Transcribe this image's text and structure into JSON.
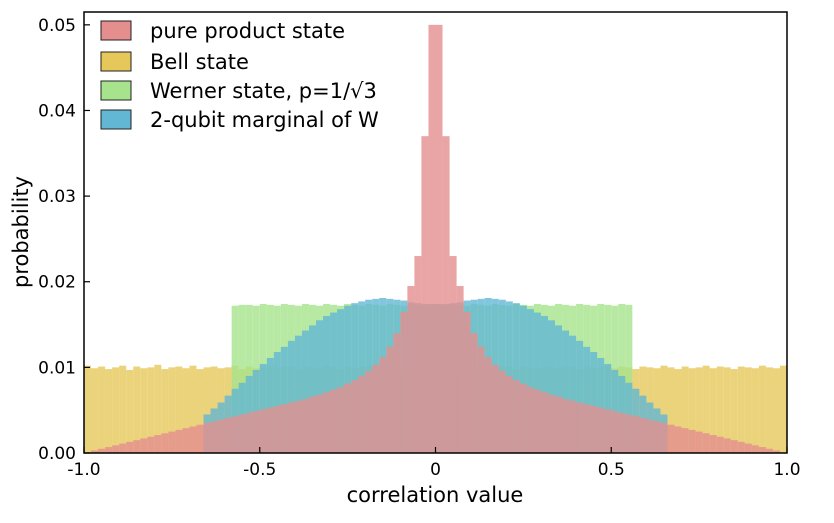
{
  "chart_data": {
    "type": "bar",
    "title": "",
    "xlabel": "correlation value",
    "ylabel": "probability",
    "xlim": [
      -1.0,
      1.0
    ],
    "ylim": [
      0.0,
      0.0515
    ],
    "x_ticks": [
      {
        "value": -1.0,
        "label": "-1.0"
      },
      {
        "value": -0.5,
        "label": "-0.5"
      },
      {
        "value": 0.0,
        "label": "0"
      },
      {
        "value": 0.5,
        "label": "0.5"
      },
      {
        "value": 1.0,
        "label": "1.0"
      }
    ],
    "y_ticks": [
      {
        "value": 0.0,
        "label": "0.00"
      },
      {
        "value": 0.01,
        "label": "0.01"
      },
      {
        "value": 0.02,
        "label": "0.02"
      },
      {
        "value": 0.03,
        "label": "0.03"
      },
      {
        "value": 0.04,
        "label": "0.04"
      },
      {
        "value": 0.05,
        "label": "0.05"
      }
    ],
    "bins": 100,
    "legend_position": "top-left",
    "series": [
      {
        "name": "Bell state",
        "color": "#e6c85a",
        "opacity": 0.8,
        "values": [
          0.0102,
          0.0099,
          0.0101,
          0.0098,
          0.01,
          0.0102,
          0.0097,
          0.0101,
          0.0099,
          0.01,
          0.0103,
          0.0098,
          0.01,
          0.0101,
          0.0099,
          0.0102,
          0.0098,
          0.01,
          0.0101,
          0.0099,
          0.01,
          0.0102,
          0.0098,
          0.0101,
          0.0099,
          0.01,
          0.0102,
          0.0099,
          0.0101,
          0.01,
          0.0098,
          0.0101,
          0.01,
          0.0099,
          0.0102,
          0.01,
          0.0098,
          0.0101,
          0.0099,
          0.01,
          0.0102,
          0.0099,
          0.0101,
          0.01,
          0.0098,
          0.01,
          0.0101,
          0.0099,
          0.0102,
          0.01,
          0.0099,
          0.0101,
          0.01,
          0.0098,
          0.0102,
          0.0099,
          0.0101,
          0.01,
          0.0099,
          0.0101,
          0.01,
          0.0098,
          0.0102,
          0.01,
          0.0099,
          0.0101,
          0.01,
          0.0099,
          0.0102,
          0.01,
          0.0098,
          0.0101,
          0.0099,
          0.01,
          0.0102,
          0.0099,
          0.0101,
          0.01,
          0.0098,
          0.0101,
          0.01,
          0.0099,
          0.0102,
          0.01,
          0.0098,
          0.0101,
          0.0099,
          0.01,
          0.0102,
          0.0099,
          0.0101,
          0.01,
          0.0098,
          0.0101,
          0.01,
          0.0099,
          0.0102,
          0.01,
          0.0099,
          0.0102
        ]
      },
      {
        "name": "Werner state, p=1/√3",
        "color": "#a6e38c",
        "opacity": 0.8,
        "values": [
          0,
          0,
          0,
          0,
          0,
          0,
          0,
          0,
          0,
          0,
          0,
          0,
          0,
          0,
          0,
          0,
          0,
          0,
          0,
          0,
          0,
          0.0172,
          0.0173,
          0.0173,
          0.0172,
          0.0174,
          0.0173,
          0.0172,
          0.0174,
          0.0173,
          0.0172,
          0.0174,
          0.0173,
          0.0172,
          0.0174,
          0.0173,
          0.0172,
          0.0174,
          0.0173,
          0.0172,
          0.0174,
          0.0173,
          0.0172,
          0.0174,
          0.0173,
          0.0172,
          0.0174,
          0.0173,
          0.0172,
          0.0174,
          0.0173,
          0.0172,
          0.0174,
          0.0173,
          0.0172,
          0.0174,
          0.0173,
          0.0172,
          0.0174,
          0.0173,
          0.0172,
          0.0174,
          0.0173,
          0.0172,
          0.0174,
          0.0173,
          0.0172,
          0.0174,
          0.0173,
          0.0172,
          0.0174,
          0.0173,
          0.0172,
          0.0174,
          0.0173,
          0.0172,
          0.0174,
          0.0173,
          0,
          0,
          0,
          0,
          0,
          0,
          0,
          0,
          0,
          0,
          0,
          0,
          0,
          0,
          0,
          0,
          0,
          0,
          0,
          0,
          0,
          0
        ]
      },
      {
        "name": "2-qubit marginal of W",
        "color": "#62b8d4",
        "opacity": 0.8,
        "values": [
          0,
          0,
          0,
          0,
          0,
          0,
          0,
          0,
          0,
          0,
          0,
          0,
          0,
          0,
          0,
          0,
          0,
          0.0045,
          0.0052,
          0.0059,
          0.0067,
          0.0075,
          0.0082,
          0.009,
          0.0097,
          0.0104,
          0.0111,
          0.0118,
          0.0124,
          0.0131,
          0.0137,
          0.0143,
          0.0149,
          0.0155,
          0.016,
          0.0164,
          0.0168,
          0.0172,
          0.0175,
          0.0177,
          0.0179,
          0.018,
          0.0181,
          0.018,
          0.0179,
          0.0178,
          0.0176,
          0.0175,
          0.0174,
          0.0174,
          0.0174,
          0.0174,
          0.0175,
          0.0176,
          0.0178,
          0.0179,
          0.018,
          0.0181,
          0.018,
          0.0179,
          0.0177,
          0.0175,
          0.0172,
          0.0168,
          0.0164,
          0.016,
          0.0155,
          0.0149,
          0.0143,
          0.0137,
          0.0131,
          0.0124,
          0.0118,
          0.0111,
          0.0104,
          0.0097,
          0.009,
          0.0082,
          0.0075,
          0.0067,
          0.0059,
          0.0052,
          0.0045,
          0,
          0,
          0,
          0,
          0,
          0,
          0,
          0,
          0,
          0,
          0,
          0,
          0,
          0,
          0,
          0,
          0
        ]
      },
      {
        "name": "pure product state",
        "color": "#e48e8e",
        "opacity": 0.8,
        "values": [
          5e-05,
          0.0003,
          0.0005,
          0.0007,
          0.0009,
          0.0011,
          0.0013,
          0.0015,
          0.0017,
          0.0019,
          0.0021,
          0.0023,
          0.0025,
          0.0027,
          0.0029,
          0.0031,
          0.0033,
          0.0035,
          0.0037,
          0.0039,
          0.0041,
          0.0043,
          0.0045,
          0.0047,
          0.0049,
          0.0051,
          0.0053,
          0.0055,
          0.0057,
          0.0059,
          0.0061,
          0.0063,
          0.0066,
          0.0068,
          0.0071,
          0.0074,
          0.0077,
          0.0081,
          0.0085,
          0.009,
          0.0096,
          0.0103,
          0.0112,
          0.0124,
          0.014,
          0.0165,
          0.0195,
          0.023,
          0.037,
          0.05,
          0.05,
          0.037,
          0.023,
          0.0195,
          0.0165,
          0.014,
          0.0124,
          0.0112,
          0.0103,
          0.0096,
          0.009,
          0.0085,
          0.0081,
          0.0077,
          0.0074,
          0.0071,
          0.0068,
          0.0066,
          0.0063,
          0.0061,
          0.0059,
          0.0057,
          0.0055,
          0.0053,
          0.0051,
          0.0049,
          0.0047,
          0.0045,
          0.0043,
          0.0041,
          0.0039,
          0.0037,
          0.0035,
          0.0033,
          0.0031,
          0.0029,
          0.0027,
          0.0025,
          0.0023,
          0.0021,
          0.0019,
          0.0017,
          0.0015,
          0.0013,
          0.0011,
          0.0009,
          0.0007,
          0.0005,
          0.0003,
          5e-05
        ]
      }
    ],
    "legend": [
      {
        "label": "pure product state",
        "color": "#e48e8e"
      },
      {
        "label": "Bell state",
        "color": "#e6c85a"
      },
      {
        "label": "Werner state, p=1/√3",
        "color": "#a6e38c"
      },
      {
        "label": "2-qubit marginal of W",
        "color": "#62b8d4"
      }
    ]
  }
}
